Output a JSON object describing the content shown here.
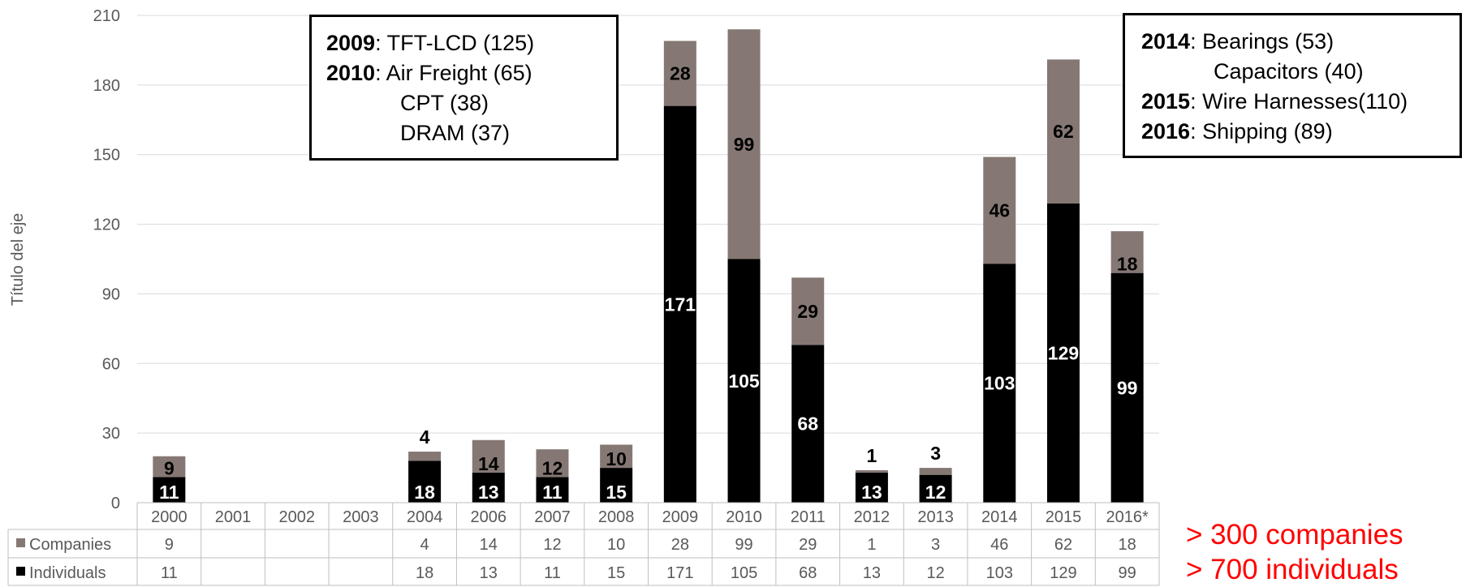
{
  "chart_data": {
    "type": "bar",
    "stacked": true,
    "ylabel": "Título del eje",
    "ylim": [
      0,
      210
    ],
    "yticks": [
      0,
      30,
      60,
      90,
      120,
      150,
      180,
      210
    ],
    "grid": true,
    "categories": [
      "2000",
      "2001",
      "2002",
      "2003",
      "2004",
      "2006",
      "2007",
      "2008",
      "2009",
      "2010",
      "2011",
      "2012",
      "2013",
      "2014",
      "2015",
      "2016*"
    ],
    "series": [
      {
        "name": "Individuals",
        "color": "#000000",
        "values": [
          11,
          null,
          null,
          null,
          18,
          13,
          11,
          15,
          171,
          105,
          68,
          13,
          12,
          103,
          129,
          99
        ]
      },
      {
        "name": "Companies",
        "color": "#857874",
        "values": [
          9,
          null,
          null,
          null,
          4,
          14,
          12,
          10,
          28,
          99,
          29,
          1,
          3,
          46,
          62,
          18
        ]
      }
    ],
    "legend": "data-table"
  },
  "callout_left": {
    "lines": [
      {
        "year": "2009",
        "text": ": TFT-LCD (125)"
      },
      {
        "year": "2010",
        "text": ": Air Freight (65)"
      },
      {
        "year": "",
        "text": "CPT (38)"
      },
      {
        "year": "",
        "text": "DRAM (37)"
      }
    ]
  },
  "callout_right": {
    "lines": [
      {
        "year": "2014",
        "text": ": Bearings (53)"
      },
      {
        "year": "",
        "text": "Capacitors (40)"
      },
      {
        "year": "2015",
        "text": ": Wire Harnesses(110)"
      },
      {
        "year": "2016",
        "text": ": Shipping (89)"
      }
    ]
  },
  "summary": {
    "companies": "> 300 companies",
    "individuals": "> 700 individuals"
  }
}
